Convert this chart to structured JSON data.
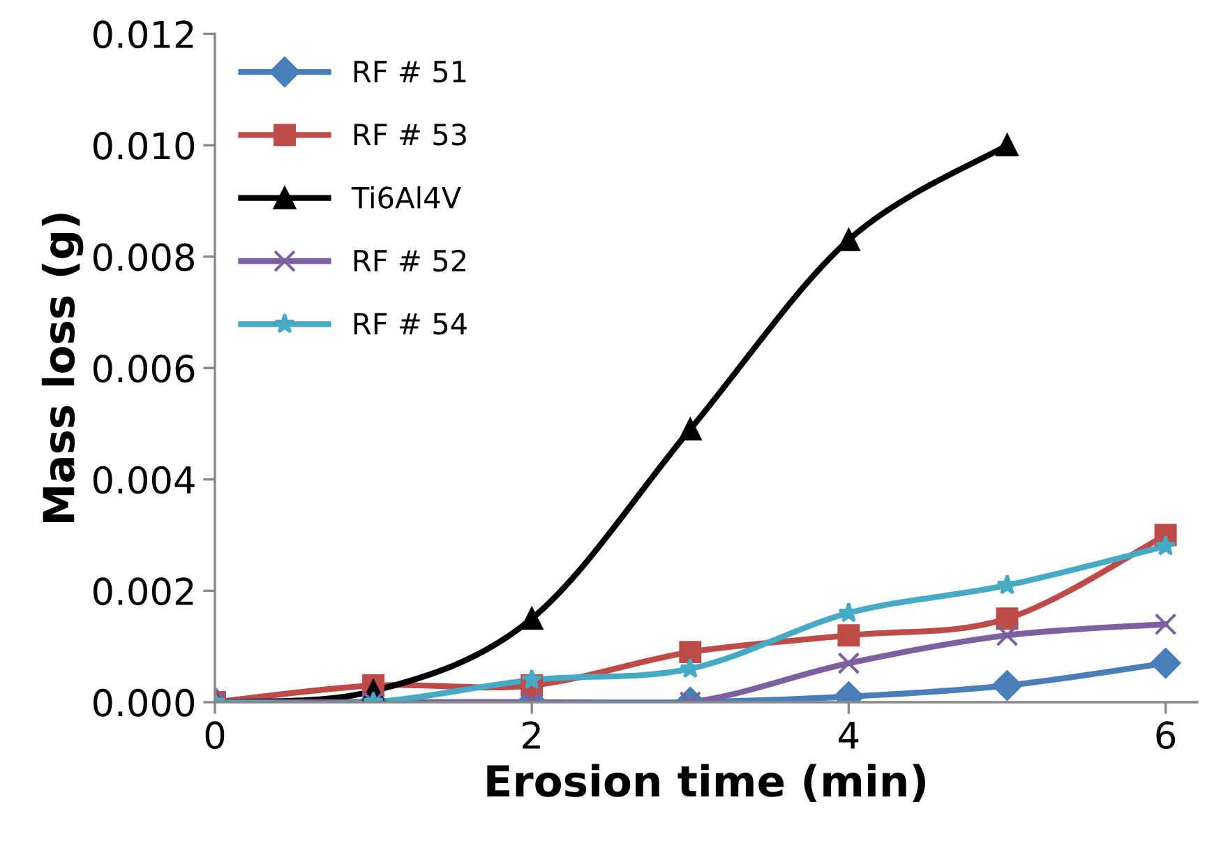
{
  "chart_data": {
    "type": "line",
    "xlabel": "Erosion time (min)",
    "ylabel": "Mass loss (g)",
    "x": [
      0,
      1,
      2,
      3,
      4,
      5,
      6
    ],
    "xlim": [
      0,
      6.2
    ],
    "xticks": [
      0,
      2,
      4,
      6
    ],
    "ylim": [
      0,
      0.012
    ],
    "yticks": [
      {
        "value": 0,
        "label": "0.000"
      },
      {
        "value": 0.002,
        "label": "0.002"
      },
      {
        "value": 0.004,
        "label": "0.004"
      },
      {
        "value": 0.006,
        "label": "0.006"
      },
      {
        "value": 0.008,
        "label": "0.008"
      },
      {
        "value": 0.01,
        "label": "0.010"
      },
      {
        "value": 0.012,
        "label": "0.012"
      }
    ],
    "grid": false,
    "legend": "top left",
    "series": [
      {
        "name": "RF # 51",
        "color": "#4a7ebb",
        "marker": "diamond",
        "values": [
          0,
          0,
          0,
          0,
          0.0001,
          0.0003,
          0.0007
        ]
      },
      {
        "name": "RF # 53",
        "color": "#be4b48",
        "marker": "square",
        "values": [
          0,
          0.0003,
          0.0003,
          0.0009,
          0.0012,
          0.0015,
          0.003
        ]
      },
      {
        "name": "Ti6Al4V",
        "color": "#000000",
        "marker": "triangle",
        "values": [
          0,
          0.0002,
          0.0015,
          0.0049,
          0.0083,
          0.01,
          null
        ]
      },
      {
        "name": "RF # 52",
        "color": "#7d60a0",
        "marker": "cross",
        "values": [
          0,
          0,
          0,
          0,
          0.0007,
          0.0012,
          0.0014
        ]
      },
      {
        "name": "RF # 54",
        "color": "#46aac5",
        "marker": "star",
        "values": [
          0,
          0,
          0.0004,
          0.0006,
          0.0016,
          0.0021,
          0.0028
        ]
      }
    ]
  }
}
